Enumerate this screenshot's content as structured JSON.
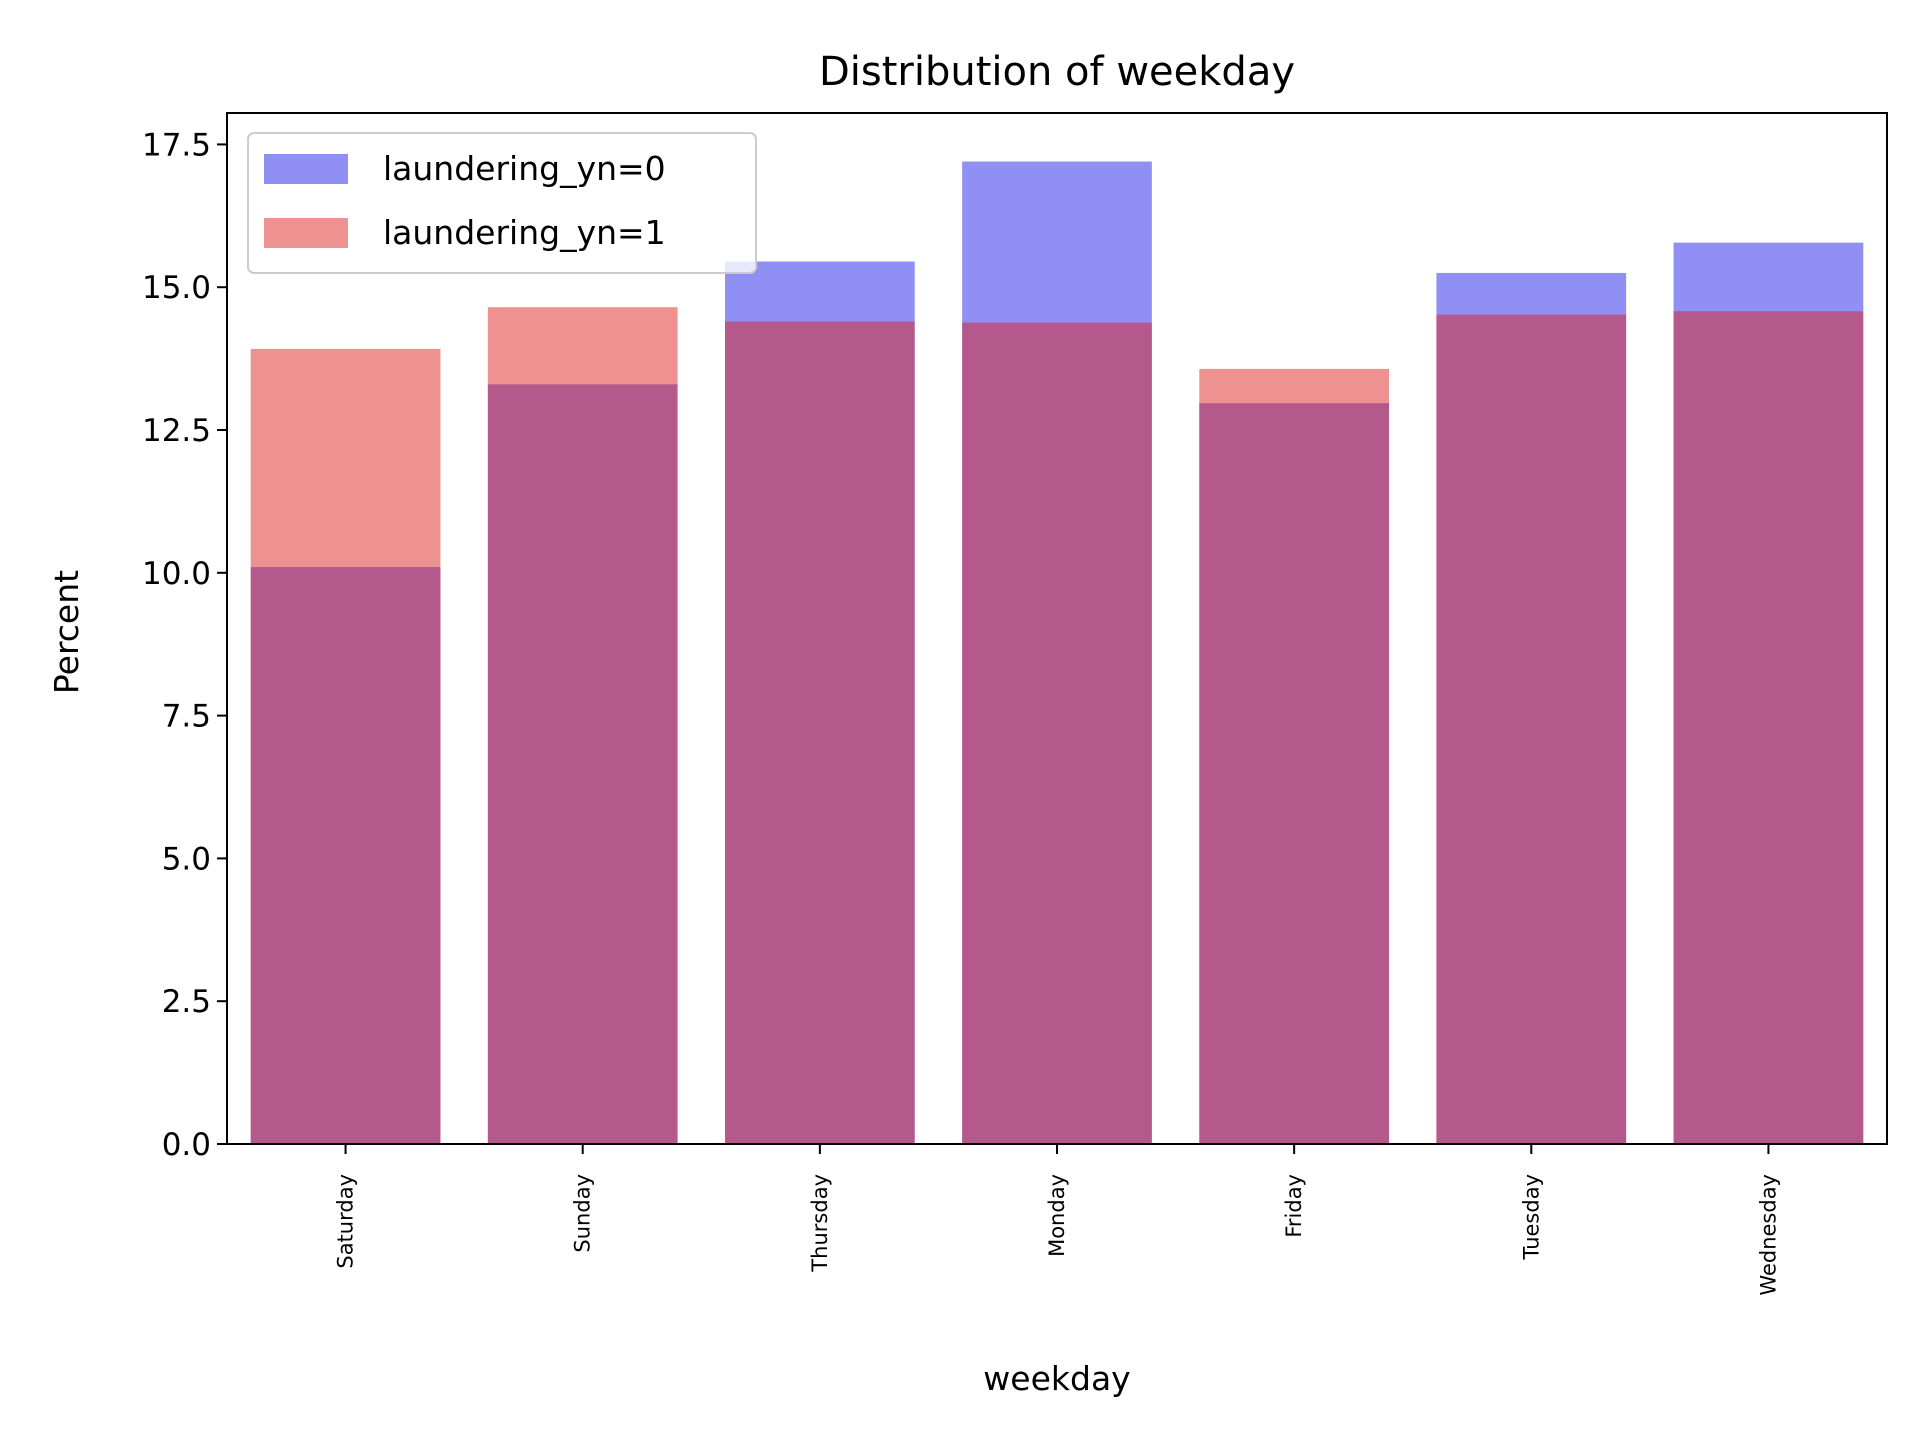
{
  "chart_data": {
    "type": "bar",
    "title": "Distribution of weekday",
    "xlabel": "weekday",
    "ylabel": "Percent",
    "ylim": [
      0,
      18.05
    ],
    "yticks": [
      "0.0",
      "2.5",
      "5.0",
      "7.5",
      "10.0",
      "12.5",
      "15.0",
      "17.5"
    ],
    "categories": [
      "Saturday",
      "Sunday",
      "Thursday",
      "Monday",
      "Friday",
      "Tuesday",
      "Wednesday"
    ],
    "series": [
      {
        "name": "laundering_yn=0",
        "color": "#0000e6",
        "opacity": 0.44,
        "values": [
          10.1,
          13.3,
          15.45,
          17.2,
          12.97,
          15.25,
          15.78
        ]
      },
      {
        "name": "laundering_yn=1",
        "color": "#dc2424",
        "opacity": 0.5,
        "values": [
          13.92,
          14.65,
          14.4,
          14.38,
          13.57,
          14.52,
          14.58
        ]
      }
    ],
    "legend": "top-left",
    "grid": false
  }
}
